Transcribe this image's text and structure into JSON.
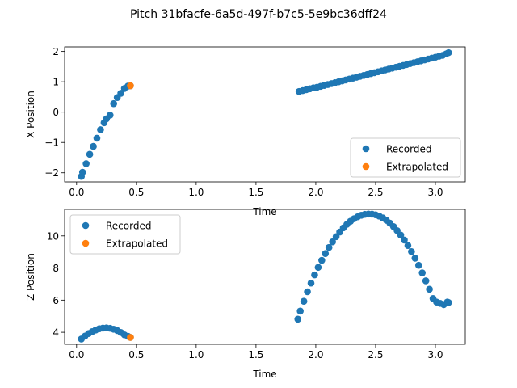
{
  "figure": {
    "title": "Pitch 31bfacfe-6a5d-497f-b7c5-5e9bc36dff24",
    "colors": {
      "recorded": "#1f77b4",
      "extrapolated": "#ff7f0e"
    }
  },
  "chart_data": [
    {
      "type": "scatter",
      "title": "",
      "xlabel": "Time",
      "ylabel": "X Position",
      "xlim": [
        -0.1,
        3.25
      ],
      "ylim": [
        -2.3,
        2.15
      ],
      "xticks": [
        0.0,
        0.5,
        1.0,
        1.5,
        2.0,
        2.5,
        3.0
      ],
      "xtick_labels": [
        "0.0",
        "0.5",
        "1.0",
        "1.5",
        "2.0",
        "2.5",
        "3.0"
      ],
      "yticks": [
        -2,
        -1,
        0,
        1,
        2
      ],
      "ytick_labels": [
        "−2",
        "−1",
        "0",
        "1",
        "2"
      ],
      "grid": false,
      "legend": "lower right",
      "series": [
        {
          "name": "Recorded",
          "color": "#1f77b4",
          "x": [
            0.04,
            0.05,
            0.08,
            0.11,
            0.14,
            0.17,
            0.2,
            0.23,
            0.25,
            0.28,
            0.31,
            0.34,
            0.37,
            0.4,
            0.43,
            0.45,
            1.86,
            1.89,
            1.92,
            1.95,
            1.98,
            2.01,
            2.04,
            2.07,
            2.1,
            2.13,
            2.16,
            2.19,
            2.22,
            2.25,
            2.28,
            2.31,
            2.34,
            2.37,
            2.4,
            2.43,
            2.46,
            2.49,
            2.52,
            2.55,
            2.58,
            2.61,
            2.64,
            2.67,
            2.7,
            2.73,
            2.76,
            2.79,
            2.82,
            2.85,
            2.88,
            2.91,
            2.94,
            2.97,
            3.0,
            3.03,
            3.06,
            3.09,
            3.11
          ],
          "y": [
            -2.12,
            -1.98,
            -1.7,
            -1.39,
            -1.13,
            -0.86,
            -0.58,
            -0.35,
            -0.22,
            -0.1,
            0.28,
            0.48,
            0.62,
            0.78,
            0.86,
            0.87,
            0.68,
            0.71,
            0.74,
            0.77,
            0.8,
            0.82,
            0.85,
            0.88,
            0.91,
            0.94,
            0.97,
            1.0,
            1.03,
            1.06,
            1.09,
            1.12,
            1.15,
            1.18,
            1.21,
            1.24,
            1.27,
            1.3,
            1.33,
            1.36,
            1.39,
            1.42,
            1.45,
            1.48,
            1.51,
            1.54,
            1.57,
            1.6,
            1.63,
            1.66,
            1.69,
            1.72,
            1.75,
            1.78,
            1.81,
            1.84,
            1.87,
            1.92,
            1.96
          ]
        },
        {
          "name": "Extrapolated",
          "color": "#ff7f0e",
          "x": [
            0.45
          ],
          "y": [
            0.87
          ]
        }
      ]
    },
    {
      "type": "scatter",
      "title": "",
      "xlabel": "Time",
      "ylabel": "Z Position",
      "xlim": [
        -0.1,
        3.25
      ],
      "ylim": [
        3.25,
        11.65
      ],
      "xticks": [
        0.0,
        0.5,
        1.0,
        1.5,
        2.0,
        2.5,
        3.0
      ],
      "xtick_labels": [
        "0.0",
        "0.5",
        "1.0",
        "1.5",
        "2.0",
        "2.5",
        "3.0"
      ],
      "yticks": [
        4,
        6,
        8,
        10
      ],
      "ytick_labels": [
        "4",
        "6",
        "8",
        "10"
      ],
      "grid": false,
      "legend": "upper left",
      "series": [
        {
          "name": "Recorded",
          "color": "#1f77b4",
          "x": [
            0.04,
            0.07,
            0.1,
            0.13,
            0.16,
            0.19,
            0.22,
            0.25,
            0.28,
            0.31,
            0.34,
            0.37,
            0.4,
            0.43,
            0.45,
            1.85,
            1.87,
            1.9,
            1.93,
            1.96,
            1.99,
            2.02,
            2.05,
            2.08,
            2.11,
            2.14,
            2.17,
            2.2,
            2.23,
            2.26,
            2.29,
            2.32,
            2.35,
            2.38,
            2.41,
            2.44,
            2.47,
            2.5,
            2.53,
            2.56,
            2.59,
            2.62,
            2.65,
            2.68,
            2.71,
            2.74,
            2.77,
            2.8,
            2.83,
            2.86,
            2.89,
            2.92,
            2.95,
            2.98,
            3.01,
            3.04,
            3.07,
            3.1,
            3.11
          ],
          "y": [
            3.58,
            3.76,
            3.92,
            4.04,
            4.14,
            4.22,
            4.26,
            4.27,
            4.25,
            4.19,
            4.11,
            3.99,
            3.84,
            3.75,
            3.68,
            4.82,
            5.32,
            5.93,
            6.52,
            7.06,
            7.57,
            8.04,
            8.48,
            8.9,
            9.28,
            9.63,
            9.95,
            10.24,
            10.5,
            10.72,
            10.91,
            11.07,
            11.19,
            11.28,
            11.34,
            11.36,
            11.35,
            11.31,
            11.23,
            11.12,
            10.97,
            10.79,
            10.58,
            10.33,
            10.05,
            9.74,
            9.4,
            9.02,
            8.61,
            8.17,
            7.7,
            7.2,
            6.68,
            6.1,
            5.88,
            5.8,
            5.72,
            5.88,
            5.85
          ]
        },
        {
          "name": "Extrapolated",
          "color": "#ff7f0e",
          "x": [
            0.45
          ],
          "y": [
            3.68
          ]
        }
      ]
    }
  ]
}
